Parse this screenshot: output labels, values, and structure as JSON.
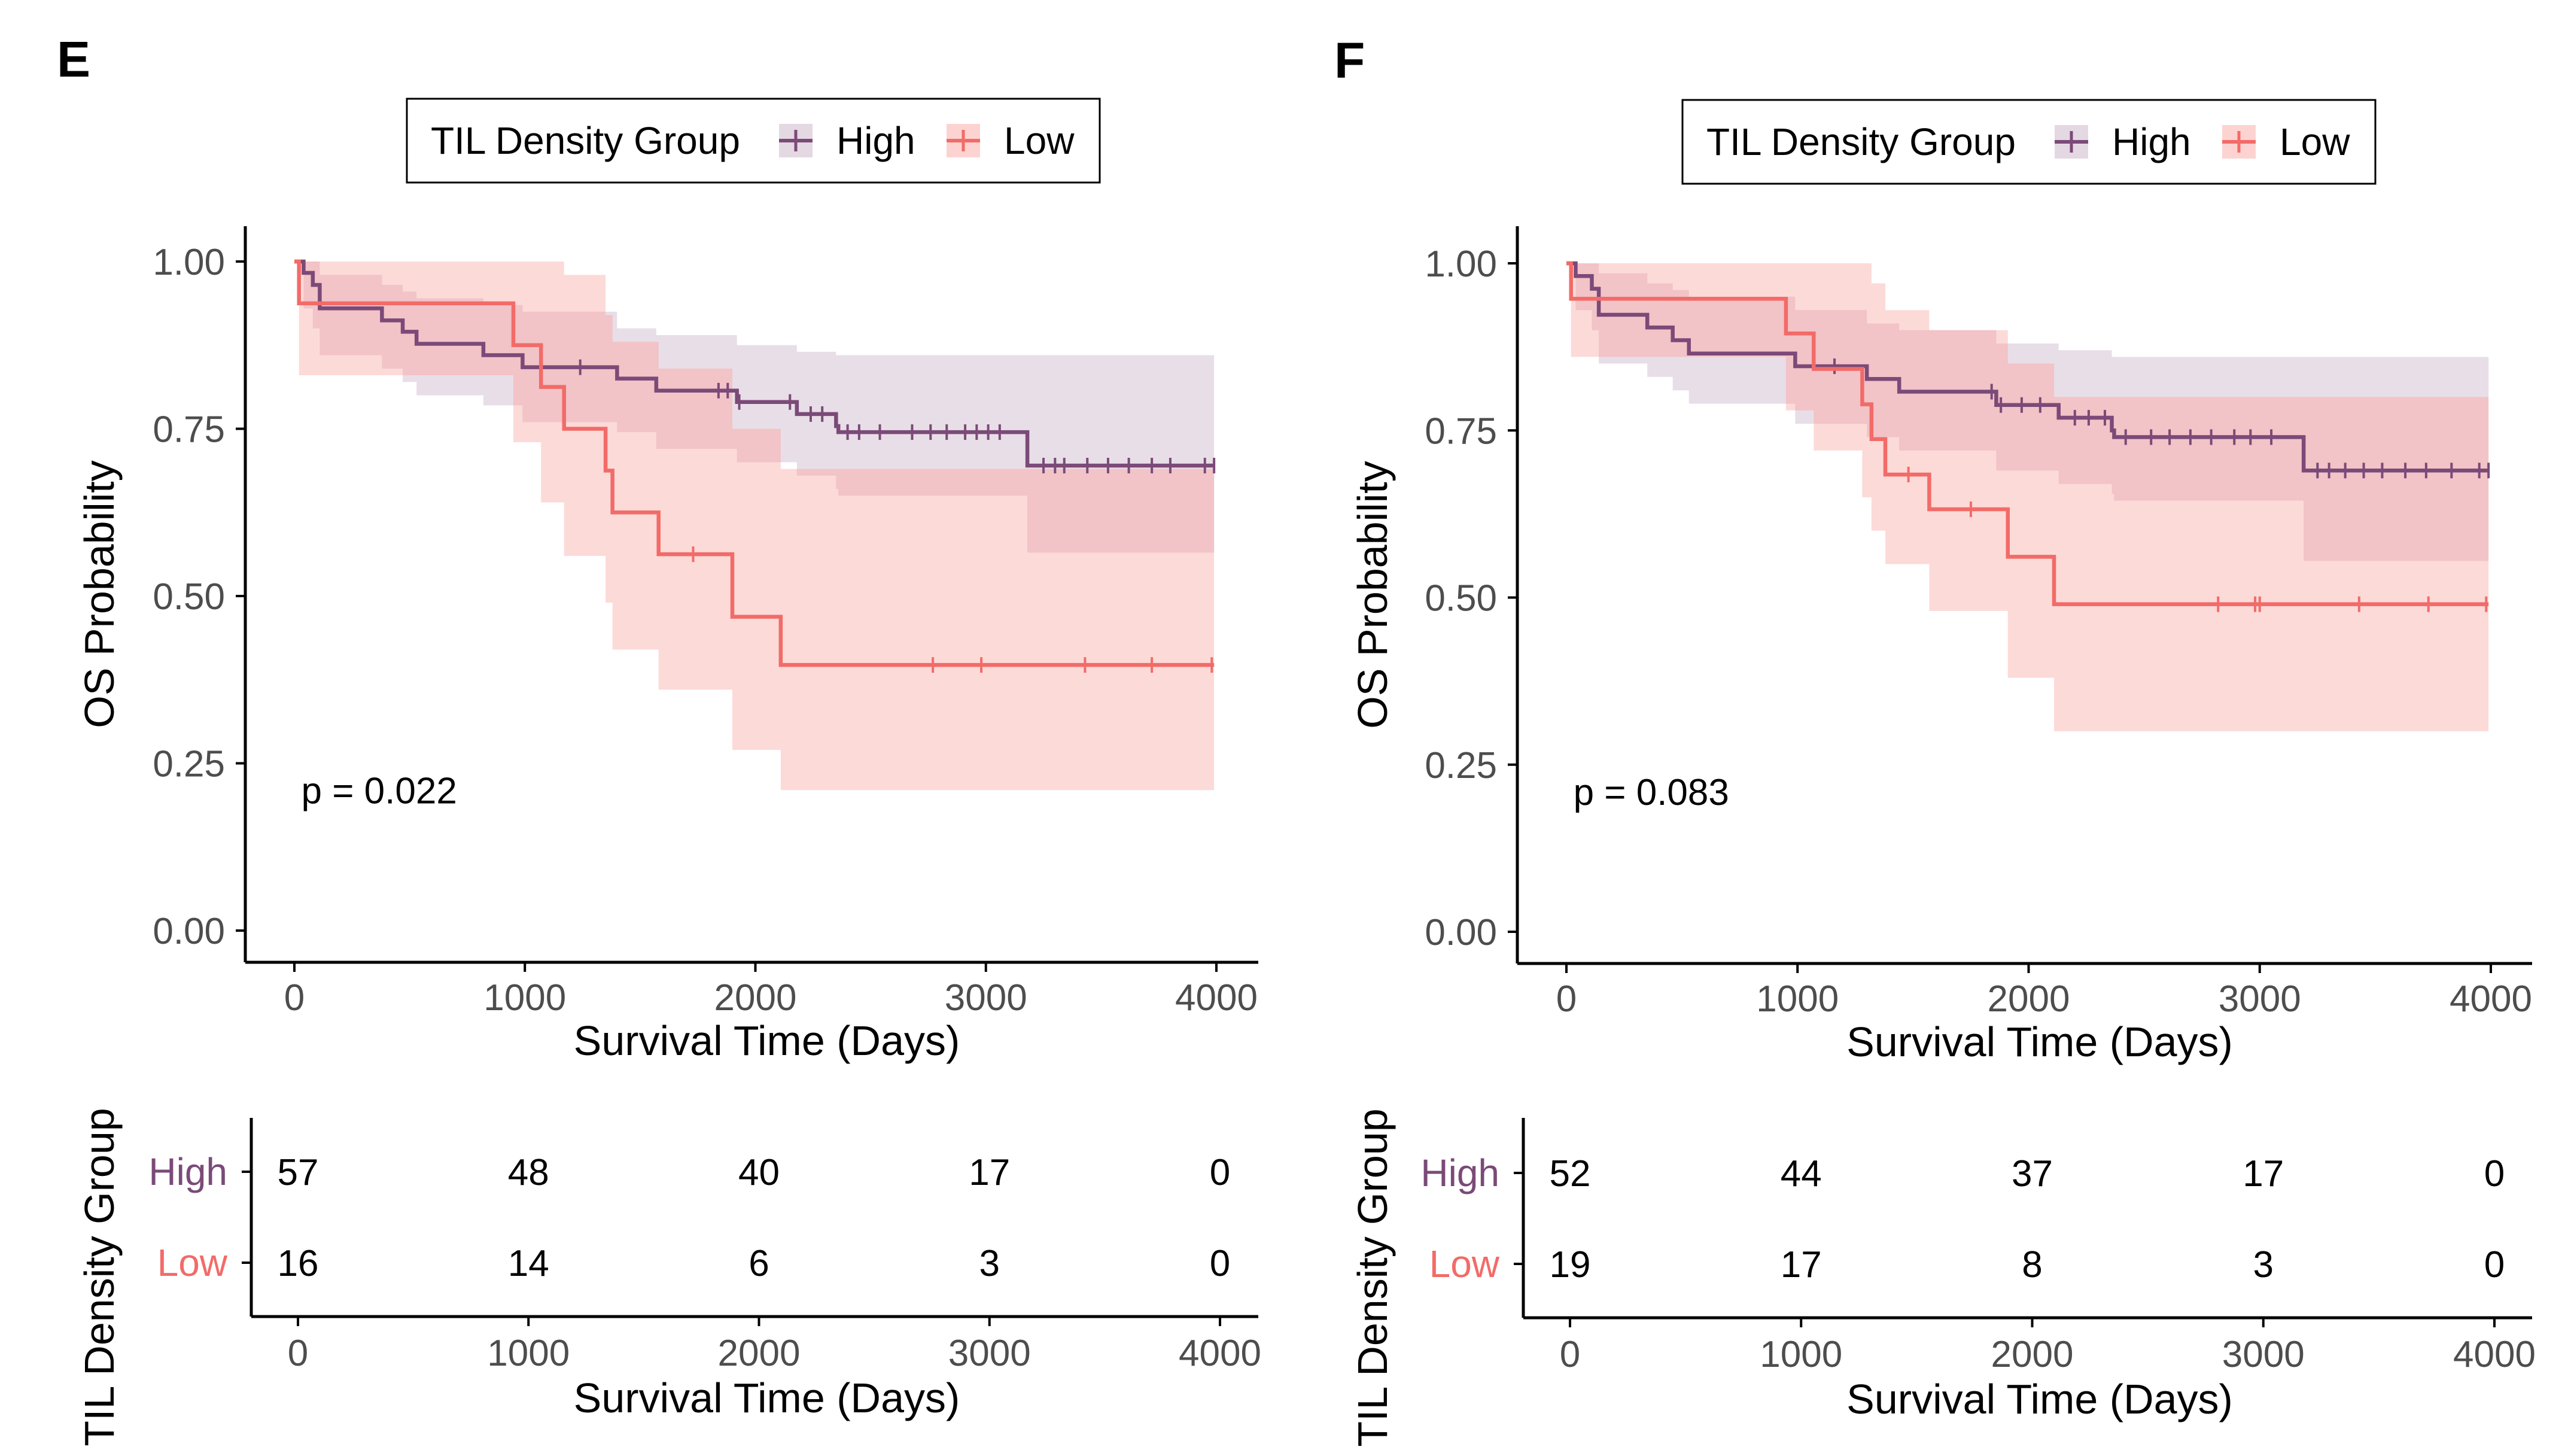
{
  "colors": {
    "high": "#7b4a78",
    "low": "#f26b68",
    "high_band": "#e4d8e3",
    "low_band": "#fcd3d1",
    "axis": "#000000",
    "tick_text": "#4d4d4d"
  },
  "chart_data": [
    {
      "type": "line",
      "subtype": "kaplan-meier",
      "panel_label": "E",
      "legend": {
        "title": "TIL Density Group",
        "entries": [
          "High",
          "Low"
        ],
        "position": "top"
      },
      "xlabel": "Survival Time (Days)",
      "ylabel": "OS Probability",
      "xlim": [
        0,
        4000
      ],
      "ylim": [
        0,
        1
      ],
      "xticks": [
        "0",
        "1000",
        "2000",
        "3000",
        "4000"
      ],
      "yticks": [
        "0.00",
        "0.25",
        "0.50",
        "0.75",
        "1.00"
      ],
      "pvalue": "p = 0.022",
      "series": [
        {
          "name": "High",
          "steps": [
            [
              0,
              1.0
            ],
            [
              40,
              0.983
            ],
            [
              80,
              0.965
            ],
            [
              110,
              0.93
            ],
            [
              380,
              0.912
            ],
            [
              470,
              0.895
            ],
            [
              530,
              0.877
            ],
            [
              820,
              0.86
            ],
            [
              990,
              0.842
            ],
            [
              1400,
              0.825
            ],
            [
              1570,
              0.807
            ],
            [
              1920,
              0.79
            ],
            [
              2180,
              0.772
            ],
            [
              2350,
              0.754
            ],
            [
              2360,
              0.745
            ],
            [
              3180,
              0.695
            ],
            [
              3990,
              0.695
            ]
          ],
          "censor": [
            1240,
            1840,
            1880,
            1930,
            2150,
            2240,
            2290,
            2400,
            2450,
            2540,
            2680,
            2760,
            2830,
            2910,
            2960,
            3010,
            3060,
            3250,
            3300,
            3340,
            3440,
            3530,
            3620,
            3720,
            3800,
            3950,
            3990
          ],
          "ci": [
            [
              0,
              1.0,
              1.0
            ],
            [
              40,
              1.0,
              0.93
            ],
            [
              80,
              1.0,
              0.9
            ],
            [
              110,
              0.98,
              0.86
            ],
            [
              380,
              0.965,
              0.84
            ],
            [
              470,
              0.955,
              0.82
            ],
            [
              530,
              0.945,
              0.8
            ],
            [
              820,
              0.935,
              0.785
            ],
            [
              990,
              0.925,
              0.76
            ],
            [
              1400,
              0.9,
              0.745
            ],
            [
              1570,
              0.89,
              0.72
            ],
            [
              1920,
              0.875,
              0.7
            ],
            [
              2180,
              0.865,
              0.68
            ],
            [
              2350,
              0.86,
              0.66
            ],
            [
              2360,
              0.86,
              0.65
            ],
            [
              3180,
              0.86,
              0.565
            ],
            [
              3990,
              0.86,
              0.565
            ]
          ]
        },
        {
          "name": "Low",
          "steps": [
            [
              0,
              1.0
            ],
            [
              20,
              0.9375
            ],
            [
              950,
              0.875
            ],
            [
              1070,
              0.8125
            ],
            [
              1170,
              0.75
            ],
            [
              1350,
              0.6875
            ],
            [
              1380,
              0.625
            ],
            [
              1580,
              0.5625
            ],
            [
              1900,
              0.469
            ],
            [
              2110,
              0.397
            ],
            [
              3990,
              0.397
            ]
          ],
          "censor": [
            1730,
            2770,
            2980,
            3430,
            3720,
            3980
          ],
          "ci": [
            [
              0,
              1.0,
              1.0
            ],
            [
              20,
              1.0,
              0.83
            ],
            [
              950,
              1.0,
              0.73
            ],
            [
              1070,
              1.0,
              0.64
            ],
            [
              1170,
              0.98,
              0.56
            ],
            [
              1350,
              0.92,
              0.49
            ],
            [
              1380,
              0.88,
              0.42
            ],
            [
              1580,
              0.84,
              0.36
            ],
            [
              1900,
              0.75,
              0.27
            ],
            [
              2110,
              0.69,
              0.21
            ],
            [
              3990,
              0.69,
              0.21
            ]
          ]
        }
      ],
      "risk_table": {
        "title": "TIL Density Group",
        "xlabel": "Survival Time (Days)",
        "times": [
          0,
          1000,
          2000,
          3000,
          4000
        ],
        "xticks": [
          "0",
          "1000",
          "2000",
          "3000",
          "4000"
        ],
        "rows": [
          {
            "label": "High",
            "counts": [
              "57",
              "48",
              "40",
              "17",
              "0"
            ]
          },
          {
            "label": "Low",
            "counts": [
              "16",
              "14",
              "6",
              "3",
              "0"
            ]
          }
        ]
      }
    },
    {
      "type": "line",
      "subtype": "kaplan-meier",
      "panel_label": "F",
      "legend": {
        "title": "TIL Density Group",
        "entries": [
          "High",
          "Low"
        ],
        "position": "top"
      },
      "xlabel": "Survival Time (Days)",
      "ylabel": "OS Probability",
      "xlim": [
        0,
        4000
      ],
      "ylim": [
        0,
        1
      ],
      "xticks": [
        "0",
        "1000",
        "2000",
        "3000",
        "4000"
      ],
      "yticks": [
        "0.00",
        "0.25",
        "0.50",
        "0.75",
        "1.00"
      ],
      "pvalue": "p = 0.083",
      "series": [
        {
          "name": "High",
          "steps": [
            [
              0,
              1.0
            ],
            [
              40,
              0.981
            ],
            [
              110,
              0.962
            ],
            [
              140,
              0.923
            ],
            [
              350,
              0.904
            ],
            [
              460,
              0.885
            ],
            [
              530,
              0.865
            ],
            [
              990,
              0.846
            ],
            [
              1300,
              0.827
            ],
            [
              1440,
              0.808
            ],
            [
              1860,
              0.788
            ],
            [
              2130,
              0.769
            ],
            [
              2360,
              0.75
            ],
            [
              2370,
              0.74
            ],
            [
              3190,
              0.69
            ],
            [
              3990,
              0.69
            ]
          ],
          "censor": [
            1160,
            1840,
            1880,
            1970,
            2050,
            2200,
            2260,
            2330,
            2420,
            2530,
            2610,
            2700,
            2790,
            2890,
            2960,
            3050,
            3250,
            3300,
            3370,
            3450,
            3530,
            3630,
            3720,
            3830,
            3950,
            3990
          ],
          "ci": [
            [
              0,
              1.0,
              1.0
            ],
            [
              40,
              1.0,
              0.93
            ],
            [
              110,
              1.0,
              0.9
            ],
            [
              140,
              0.985,
              0.85
            ],
            [
              350,
              0.97,
              0.83
            ],
            [
              460,
              0.96,
              0.81
            ],
            [
              530,
              0.95,
              0.79
            ],
            [
              990,
              0.93,
              0.76
            ],
            [
              1300,
              0.91,
              0.74
            ],
            [
              1440,
              0.9,
              0.72
            ],
            [
              1860,
              0.88,
              0.69
            ],
            [
              2130,
              0.87,
              0.67
            ],
            [
              2360,
              0.86,
              0.655
            ],
            [
              2370,
              0.86,
              0.645
            ],
            [
              3190,
              0.86,
              0.555
            ],
            [
              3990,
              0.86,
              0.555
            ]
          ]
        },
        {
          "name": "Low",
          "steps": [
            [
              0,
              1.0
            ],
            [
              20,
              0.947
            ],
            [
              950,
              0.895
            ],
            [
              1070,
              0.842
            ],
            [
              1280,
              0.789
            ],
            [
              1320,
              0.737
            ],
            [
              1380,
              0.684
            ],
            [
              1570,
              0.632
            ],
            [
              1910,
              0.561
            ],
            [
              2110,
              0.49
            ],
            [
              3990,
              0.49
            ]
          ],
          "censor": [
            1480,
            1750,
            2820,
            2980,
            3000,
            3430,
            3730,
            3980
          ],
          "ci": [
            [
              0,
              1.0,
              1.0
            ],
            [
              20,
              1.0,
              0.86
            ],
            [
              950,
              1.0,
              0.78
            ],
            [
              1070,
              1.0,
              0.72
            ],
            [
              1280,
              1.0,
              0.65
            ],
            [
              1320,
              0.97,
              0.6
            ],
            [
              1380,
              0.93,
              0.55
            ],
            [
              1570,
              0.9,
              0.48
            ],
            [
              1910,
              0.85,
              0.38
            ],
            [
              2110,
              0.8,
              0.3
            ],
            [
              3990,
              0.8,
              0.3
            ]
          ]
        }
      ],
      "risk_table": {
        "title": "TIL Density Group",
        "xlabel": "Survival Time (Days)",
        "times": [
          0,
          1000,
          2000,
          3000,
          4000
        ],
        "xticks": [
          "0",
          "1000",
          "2000",
          "3000",
          "4000"
        ],
        "rows": [
          {
            "label": "High",
            "counts": [
              "52",
              "44",
              "37",
              "17",
              "0"
            ]
          },
          {
            "label": "Low",
            "counts": [
              "19",
              "17",
              "8",
              "3",
              "0"
            ]
          }
        ]
      }
    }
  ]
}
